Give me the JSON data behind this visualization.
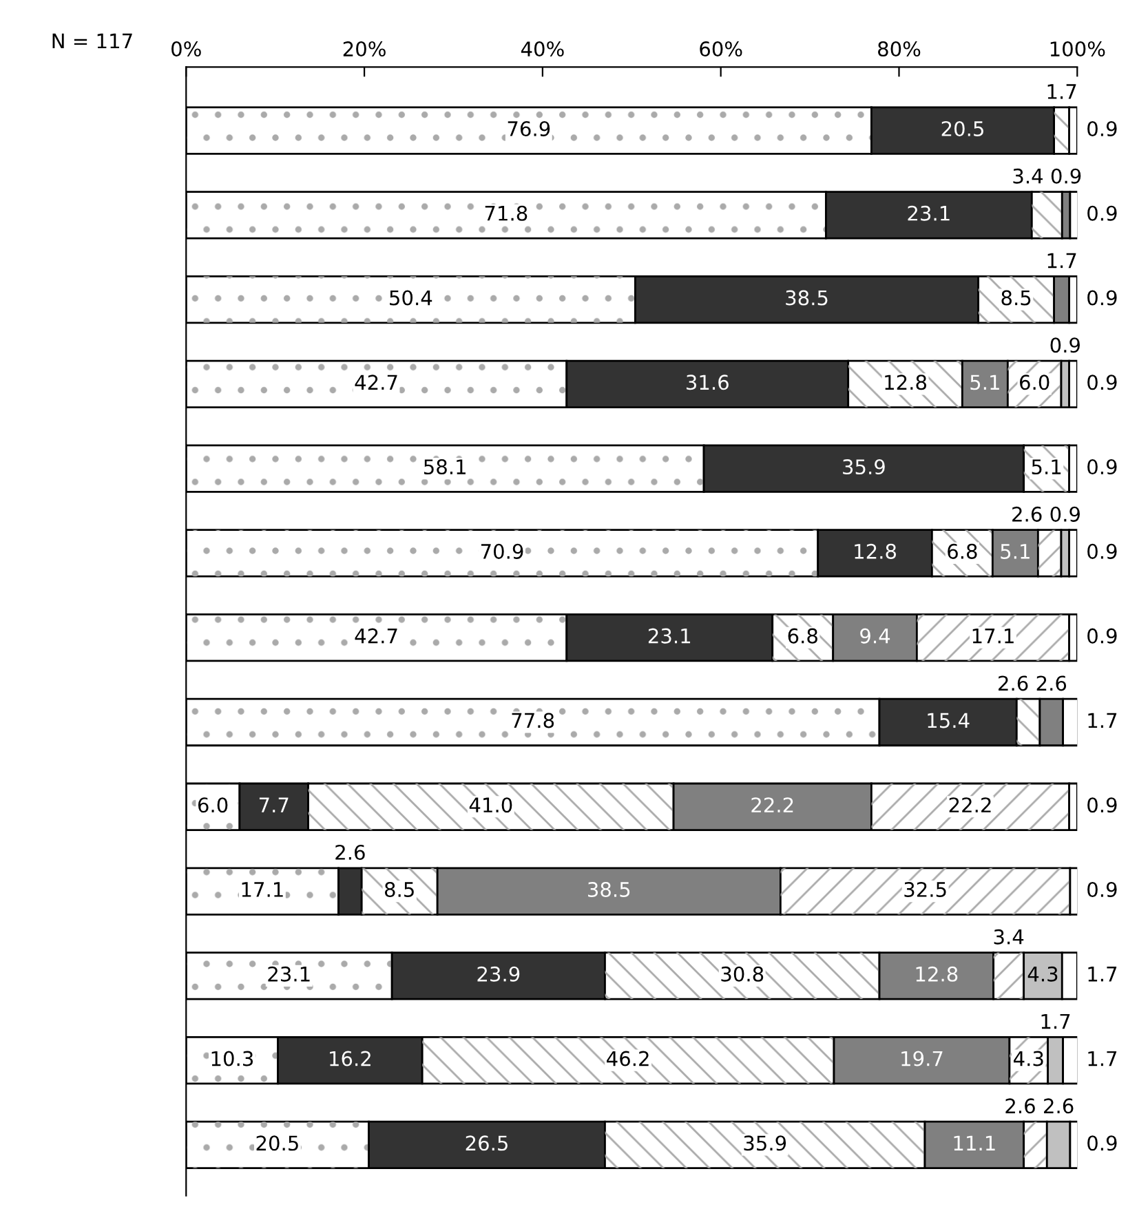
{
  "chart_data": {
    "type": "bar",
    "orientation": "horizontal",
    "stacked": true,
    "categories": [
      null,
      null,
      null,
      null,
      null,
      null,
      null,
      null,
      null,
      null,
      null,
      null,
      null
    ],
    "xlim": [
      0,
      100
    ],
    "xticks": [
      {
        "value": 0,
        "label": "0%"
      },
      {
        "value": 20,
        "label": "20%"
      },
      {
        "value": 40,
        "label": "40%"
      },
      {
        "value": 60,
        "label": "60%"
      },
      {
        "value": 80,
        "label": "80%"
      },
      {
        "value": 100,
        "label": "100%"
      }
    ],
    "tick_labels": "x",
    "grid": false,
    "annotations": [
      "N = 117"
    ],
    "series": [
      {
        "color": "#ffffff",
        "values": [
          76.9,
          71.8,
          50.4,
          42.7,
          58.1,
          70.9,
          42.7,
          77.8,
          6.0,
          17.1,
          23.1,
          10.3,
          20.5
        ],
        "value_labels": [
          "76.9",
          "71.8",
          "50.4",
          "42.7",
          "58.1",
          "70.9",
          "42.7",
          "77.8",
          "6.0",
          "17.1",
          "23.1",
          "10.3",
          "20.5"
        ]
      },
      {
        "color": "#333333",
        "values": [
          20.5,
          23.1,
          38.5,
          31.6,
          35.9,
          12.8,
          23.1,
          15.4,
          7.7,
          2.6,
          23.9,
          16.2,
          26.5
        ],
        "value_labels": [
          "20.5",
          "23.1",
          "38.5",
          "31.6",
          "35.9",
          "12.8",
          "23.1",
          "15.4",
          "7.7",
          "2.6",
          "23.9",
          "16.2",
          "26.5"
        ]
      },
      {
        "color": "#ffffff",
        "values": [
          1.7,
          3.4,
          8.5,
          12.8,
          5.1,
          6.8,
          6.8,
          2.6,
          41.0,
          8.5,
          30.8,
          46.2,
          35.9
        ],
        "value_labels": [
          "1.7",
          "3.4",
          "8.5",
          "12.8",
          "5.1",
          "6.8",
          "6.8",
          "2.6",
          "41.0",
          "8.5",
          "30.8",
          "46.2",
          "35.9"
        ]
      },
      {
        "color": "#808080",
        "values": [
          null,
          0.9,
          1.7,
          5.1,
          null,
          5.1,
          9.4,
          2.6,
          22.2,
          38.5,
          12.8,
          19.7,
          11.1
        ],
        "value_labels": [
          null,
          "0.9",
          "1.7",
          "5.1",
          null,
          "5.1",
          "9.4",
          "2.6",
          "22.2",
          "38.5",
          "12.8",
          "19.7",
          "11.1"
        ]
      },
      {
        "color": "#ffffff",
        "values": [
          null,
          null,
          null,
          6.0,
          null,
          2.6,
          17.1,
          null,
          22.2,
          32.5,
          3.4,
          4.3,
          2.6
        ],
        "value_labels": [
          null,
          null,
          null,
          "6.0",
          null,
          "2.6",
          "17.1",
          null,
          "22.2",
          "32.5",
          "3.4",
          "4.3",
          "2.6"
        ]
      },
      {
        "color": "#c0c0c0",
        "values": [
          null,
          null,
          null,
          0.9,
          null,
          0.9,
          null,
          null,
          null,
          null,
          4.3,
          1.7,
          2.6
        ],
        "value_labels": [
          null,
          null,
          null,
          "0.9",
          null,
          "0.9",
          null,
          null,
          null,
          null,
          "4.3",
          "1.7",
          "2.6"
        ]
      },
      {
        "color": "#ffffff",
        "values": [
          0.9,
          0.9,
          0.9,
          0.9,
          0.9,
          0.9,
          0.9,
          1.7,
          0.9,
          0.9,
          1.7,
          1.7,
          0.9
        ],
        "value_labels": [
          "0.9",
          "0.9",
          "0.9",
          "0.9",
          "0.9",
          "0.9",
          "0.9",
          "1.7",
          "0.9",
          "0.9",
          "1.7",
          "1.7",
          "0.9"
        ]
      }
    ]
  }
}
